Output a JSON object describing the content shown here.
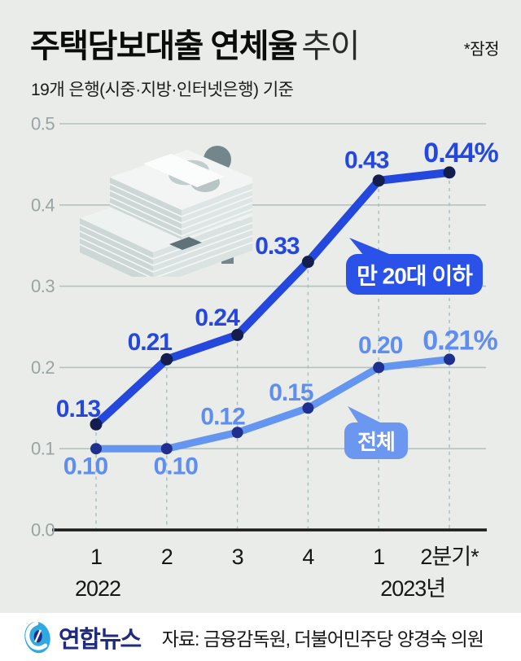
{
  "header": {
    "title_main": "주택담보대출 연체율",
    "title_sub": "추이",
    "note": "*잠정",
    "subtitle": "19개 은행(시중·지방·인터넷은행) 기준"
  },
  "chart_data": {
    "type": "line",
    "title": "주택담보대출 연체율 추이",
    "unit": "%",
    "x_tick_labels": [
      "1",
      "2",
      "3",
      "4",
      "1",
      "2분기*"
    ],
    "x_year_labels": [
      {
        "text": "2022",
        "tick_index": 0
      },
      {
        "text": "2023년",
        "tick_index": 4
      }
    ],
    "y_ticks": [
      "0.0",
      "0.1",
      "0.2",
      "0.3",
      "0.4",
      "0.5"
    ],
    "ylim": [
      0,
      0.5
    ],
    "grid": true,
    "series": [
      {
        "name": "만 20대 이하",
        "values": [
          0.13,
          0.21,
          0.24,
          0.33,
          0.43,
          0.44
        ],
        "point_labels": [
          "0.13",
          "0.21",
          "0.24",
          "0.33",
          "0.43",
          "0.44%"
        ],
        "color": "#2448de",
        "label_color": "#2448dd",
        "dot_color": "#131d4e",
        "bubble_text": "만 20대 이하",
        "bubble_fill": "#2b52e8"
      },
      {
        "name": "전체",
        "values": [
          0.1,
          0.1,
          0.12,
          0.15,
          0.2,
          0.21
        ],
        "point_labels": [
          "0.10",
          "0.10",
          "0.12",
          "0.15",
          "0.20",
          "0.21%"
        ],
        "color": "#6495f0",
        "label_color": "#5f8ef0",
        "dot_color": "#1e2f8f",
        "bubble_text": "전체",
        "bubble_fill": "#6b97f0"
      }
    ]
  },
  "footer": {
    "brand": "연합뉴스",
    "source": "자료: 금융감독원, 더불어민주당 양경숙 의원"
  },
  "colors": {
    "background": "#e9ece8",
    "grid": "#b7c1c1",
    "axis": "#1a1a1a",
    "dashed": "#a9bfc6",
    "tick_text": "#161616",
    "y_label": "#9aa4a6",
    "footer_bg": "#ffffff",
    "brand_navy": "#1e2b7e",
    "logo_blue": "#2fa9e2"
  }
}
